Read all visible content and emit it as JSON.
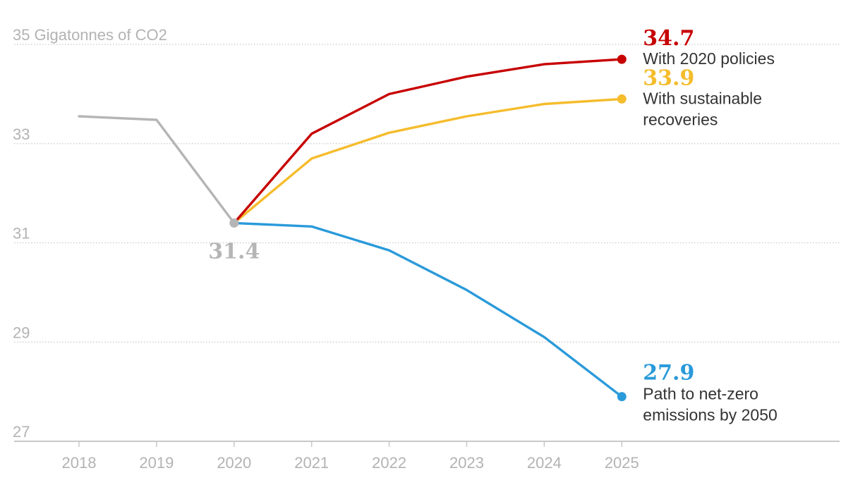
{
  "chart_data": {
    "type": "line",
    "ylabel": "Gigatonnes of CO2",
    "ylim": [
      27,
      35
    ],
    "y_ticks": [
      {
        "value": 35,
        "label": "35"
      },
      {
        "value": 33,
        "label": "33"
      },
      {
        "value": 31,
        "label": "31"
      },
      {
        "value": 29,
        "label": "29"
      },
      {
        "value": 27,
        "label": "27"
      }
    ],
    "x_ticks": [
      "2018",
      "2019",
      "2020",
      "2021",
      "2022",
      "2023",
      "2024",
      "2025"
    ],
    "grid": true,
    "series": [
      {
        "key": "history",
        "color": "#b5b5b5",
        "x": [
          2018,
          2019,
          2020
        ],
        "values": [
          33.55,
          33.48,
          31.4
        ]
      },
      {
        "key": "policies",
        "name": "With 2020 policies",
        "color": "#c70000",
        "x": [
          2020,
          2021,
          2022,
          2023,
          2024,
          2025
        ],
        "values": [
          31.4,
          33.2,
          34.0,
          34.35,
          34.6,
          34.7
        ]
      },
      {
        "key": "sustainable",
        "name": "With sustainable recoveries",
        "color": "#f5bc2c",
        "x": [
          2020,
          2021,
          2022,
          2023,
          2024,
          2025
        ],
        "values": [
          31.4,
          32.7,
          33.22,
          33.55,
          33.8,
          33.9
        ]
      },
      {
        "key": "netzero",
        "name": "Path to net-zero emissions by 2050",
        "color": "#2a9ada",
        "x": [
          2020,
          2021,
          2022,
          2023,
          2024,
          2025
        ],
        "values": [
          31.4,
          31.33,
          30.85,
          30.05,
          29.1,
          27.9
        ]
      }
    ],
    "annotations": [
      {
        "key": "start",
        "value_label": "31.4",
        "color": "#b5b5b5"
      },
      {
        "key": "policies",
        "value_label": "34.7",
        "lines": [
          "With 2020 policies"
        ],
        "color": "#c70000"
      },
      {
        "key": "sustainable",
        "value_label": "33.9",
        "lines": [
          "With sustainable",
          "recoveries"
        ],
        "color": "#f5bc2c"
      },
      {
        "key": "netzero",
        "value_label": "27.9",
        "lines": [
          "Path to net-zero",
          "emissions by 2050"
        ],
        "color": "#2a9ada"
      }
    ]
  }
}
